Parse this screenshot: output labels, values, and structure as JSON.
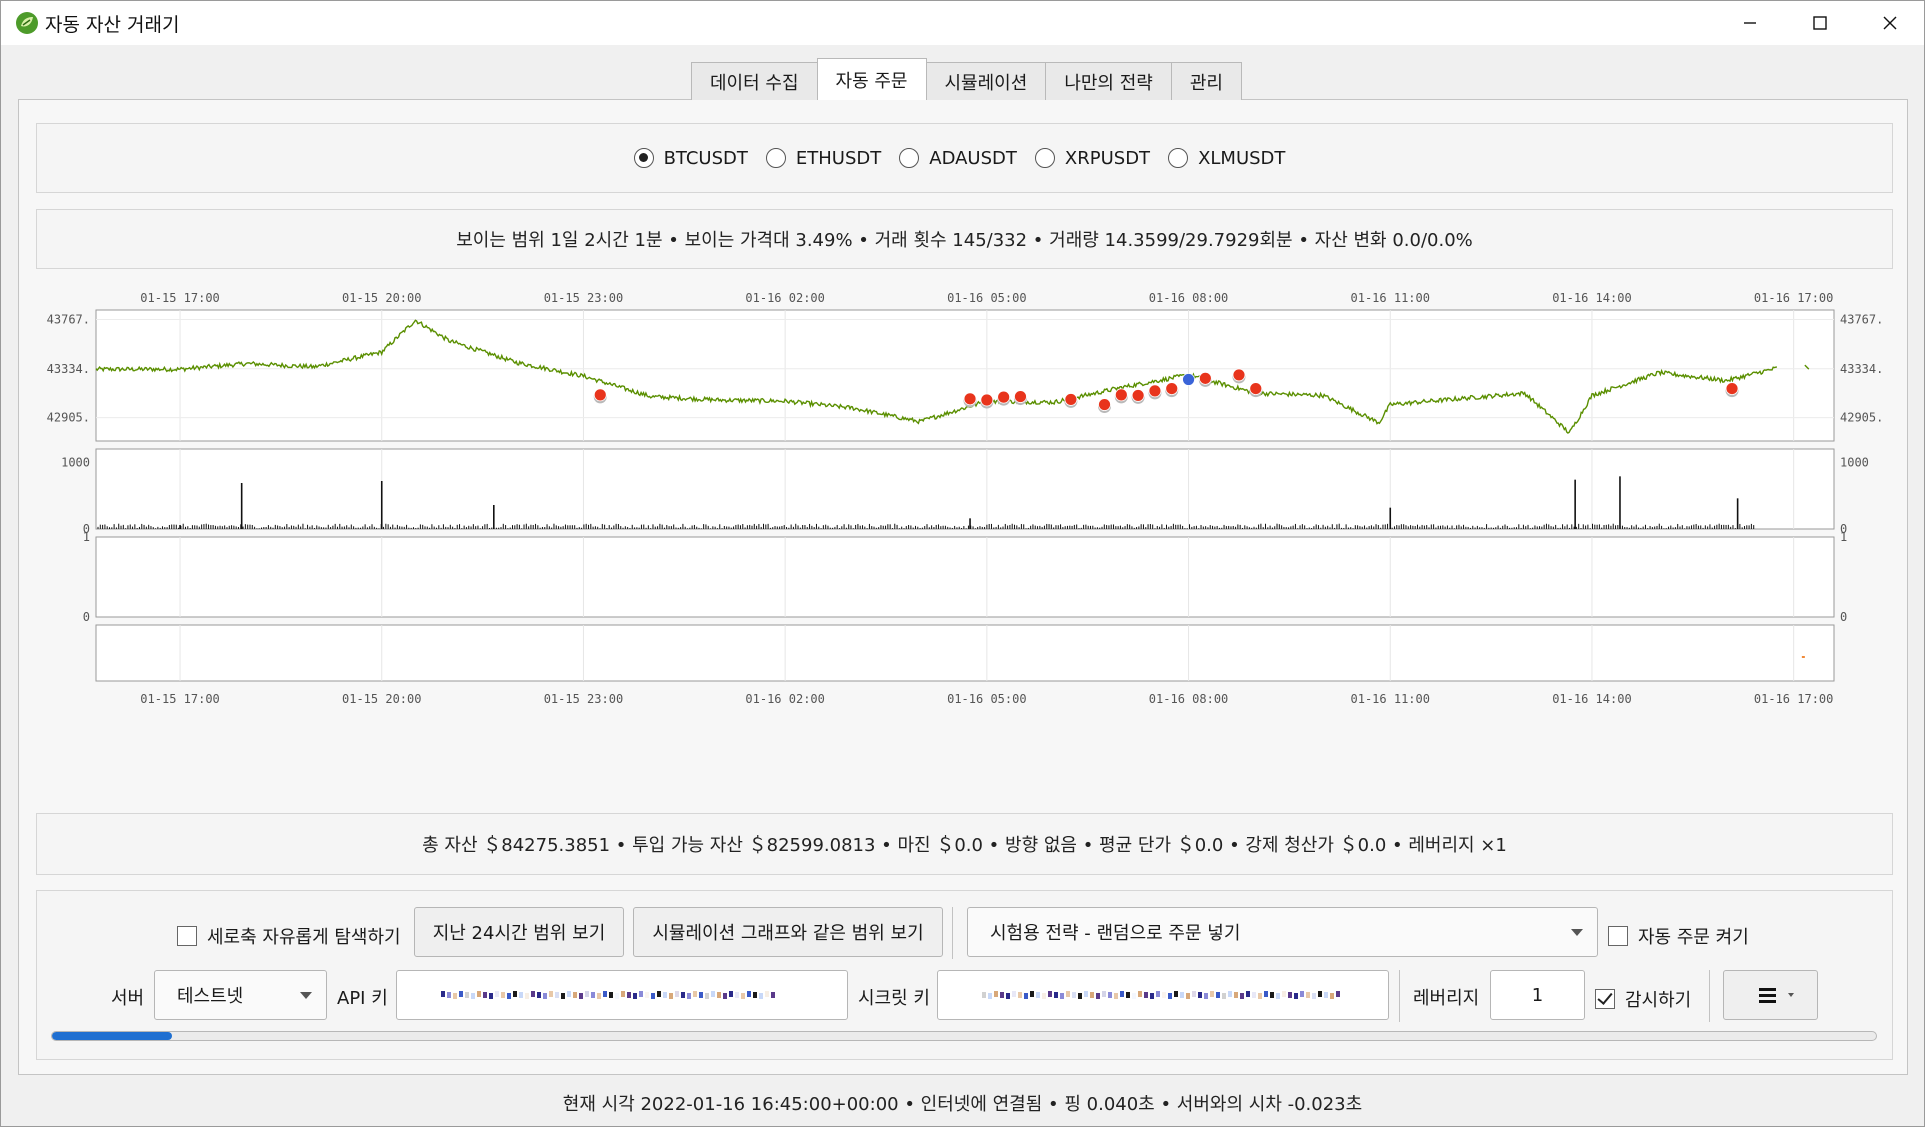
{
  "window": {
    "title": "자동 자산 거래기",
    "minimize_icon": "minimize-icon",
    "maximize_icon": "maximize-icon",
    "close_icon": "close-icon"
  },
  "tabs": [
    {
      "label": "데이터 수집",
      "active": false
    },
    {
      "label": "자동 주문",
      "active": true
    },
    {
      "label": "시뮬레이션",
      "active": false
    },
    {
      "label": "나만의 전략",
      "active": false
    },
    {
      "label": "관리",
      "active": false
    }
  ],
  "symbols": [
    {
      "label": "BTCUSDT",
      "selected": true
    },
    {
      "label": "ETHUSDT",
      "selected": false
    },
    {
      "label": "ADAUSDT",
      "selected": false
    },
    {
      "label": "XRPUSDT",
      "selected": false
    },
    {
      "label": "XLMUSDT",
      "selected": false
    }
  ],
  "range_info": "보이는 범위 1일 2시간 1분 • 보이는 가격대 3.49% • 거래 횟수 145/332 • 거래량 14.3599/29.7929회분 • 자산 변화 0.0/0.0%",
  "chart_data": {
    "type": "line",
    "x_tick_labels": [
      "01-15 17:00",
      "01-15 20:00",
      "01-15 23:00",
      "01-16 02:00",
      "01-16 05:00",
      "01-16 08:00",
      "01-16 11:00",
      "01-16 14:00",
      "01-16 17:00"
    ],
    "price_axis_labels": [
      "43767.",
      "43334.",
      "42905."
    ],
    "volume_axis_labels": [
      "1000",
      "0"
    ],
    "indicator_axis_labels": [
      "1",
      "0"
    ],
    "colors": {
      "price_line": "#5a8f00",
      "buy_marker": "#e8341c",
      "sell_marker": "#3a64d8",
      "volume": "#111111"
    },
    "price_series": {
      "name": "",
      "x": [
        "01-15 15:45",
        "01-15 17:00",
        "01-15 18:00",
        "01-15 19:00",
        "01-15 20:00",
        "01-15 20:30",
        "01-15 21:00",
        "01-15 22:00",
        "01-15 23:00",
        "01-16 00:00",
        "01-16 01:00",
        "01-16 02:00",
        "01-16 03:00",
        "01-16 04:00",
        "01-16 05:00",
        "01-16 06:00",
        "01-16 07:00",
        "01-16 08:00",
        "01-16 09:00",
        "01-16 10:00",
        "01-16 10:50",
        "01-16 11:00",
        "01-16 12:00",
        "01-16 13:00",
        "01-16 13:40",
        "01-16 14:00",
        "01-16 15:00",
        "01-16 16:00",
        "01-16 16:45"
      ],
      "y": [
        43330,
        43330,
        43380,
        43350,
        43480,
        43760,
        43580,
        43390,
        43270,
        43090,
        43060,
        43050,
        42990,
        42870,
        43050,
        43040,
        43170,
        43280,
        43120,
        43100,
        42860,
        43020,
        43070,
        43120,
        42770,
        43100,
        43300,
        43230,
        43340
      ]
    },
    "buy_markers": {
      "x": [
        "01-15 23:15",
        "01-16 04:45",
        "01-16 05:00",
        "01-16 05:15",
        "01-16 05:30",
        "01-16 06:15",
        "01-16 06:45",
        "01-16 07:00",
        "01-16 07:15",
        "01-16 07:30",
        "01-16 07:45",
        "01-16 08:15",
        "01-16 08:45",
        "01-16 09:00",
        "01-16 16:05"
      ],
      "y": [
        43105,
        43070,
        43060,
        43085,
        43090,
        43065,
        43020,
        43105,
        43100,
        43140,
        43160,
        43250,
        43280,
        43160,
        43160
      ]
    },
    "sell_markers": {
      "x": [
        "01-16 08:00"
      ],
      "y": [
        43240
      ]
    },
    "volume_series": {
      "name": "",
      "x": [
        "01-15 17:00",
        "01-15 17:55",
        "01-15 20:00",
        "01-15 21:40",
        "01-16 04:45",
        "01-16 11:00",
        "01-16 13:45",
        "01-16 14:25",
        "01-16 16:10"
      ],
      "values": [
        60,
        690,
        720,
        360,
        160,
        320,
        740,
        790,
        460
      ]
    },
    "volume_ylim": [
      0,
      1200
    ],
    "price_ylim": [
      42700,
      43850
    ]
  },
  "asset_info": "총 자산 ＄84275.3851 • 투입 가능 자산 ＄82599.0813 • 마진 ＄0.0 • 방향 없음 • 평균 단가 ＄0.0 • 강제 청산가 ＄0.0 • 레버리지 ×1",
  "controls": {
    "free_y_label": "세로축 자유롭게 탐색하기",
    "free_y_checked": false,
    "last24h_button": "지난 24시간 범위 보기",
    "same_range_button": "시뮬레이션 그래프와 같은 범위 보기",
    "strategy_selected": "시험용 전략 - 랜덤으로 주문 넣기",
    "auto_order_label": "자동 주문 켜기",
    "auto_order_checked": false,
    "server_label": "서버",
    "server_selected": "테스트넷",
    "api_key_label": "API 키",
    "secret_key_label": "시크릿 키",
    "leverage_label": "레버리지",
    "leverage_value": "1",
    "monitor_label": "감시하기",
    "monitor_checked": true,
    "menu_icon": "hamburger-menu-icon",
    "progress_fraction": 0.066
  },
  "status_text": "현재 시각 2022-01-16 16:45:00+00:00 • 인터넷에 연결됨 • 핑 0.040초 • 서버와의 시차 -0.023초"
}
